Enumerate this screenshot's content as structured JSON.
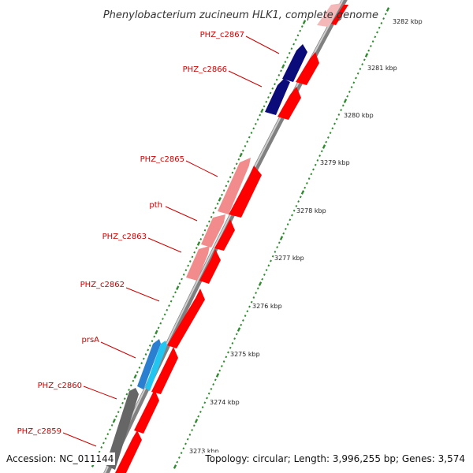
{
  "title": "Phenylobacterium zucineum HLK1, complete genome",
  "colors": {
    "backbone": "#8c8c8c",
    "backbone_dark": "#6a6a6a",
    "tick": "#2e8b2e",
    "label": "#cc0000",
    "forward_gene": "#ff0000",
    "navy_gene": "#0b0b7a",
    "pink_gene": "#f28c8c",
    "blue_gene": "#2a7fd0",
    "cyan_gene": "#22c4f0",
    "gray_gene": "#666666"
  },
  "kbp_labels": [
    "3273 kbp",
    "3274 kbp",
    "3275 kbp",
    "3276 kbp",
    "3277 kbp",
    "3278 kbp",
    "3279 kbp",
    "3280 kbp",
    "3281 kbp",
    "3282 kbp"
  ],
  "gene_labels": [
    "PHZ_c2867",
    "PHZ_c2866",
    "PHZ_c2865",
    "pth",
    "PHZ_c2863",
    "PHZ_c2862",
    "prsA",
    "PHZ_c2860",
    "PHZ_c2859"
  ],
  "footer": {
    "accession": "Accession: NC_011144",
    "topology": "Topology: circular; Length: 3,996,255 bp; Genes: 3,574"
  }
}
